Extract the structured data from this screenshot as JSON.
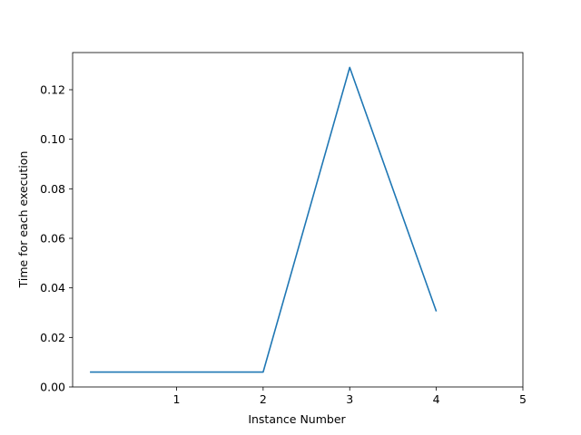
{
  "chart_data": {
    "type": "line",
    "title": "",
    "xlabel": "Instance Number",
    "ylabel": "Time for each execution",
    "xlim": [
      -0.2,
      5.0
    ],
    "ylim": [
      0.0,
      0.135
    ],
    "xticks": [
      1,
      2,
      3,
      4,
      5
    ],
    "yticks": [
      0.0,
      0.02,
      0.04,
      0.06,
      0.08,
      0.1,
      0.12
    ],
    "ytick_labels": [
      "0.00",
      "0.02",
      "0.04",
      "0.06",
      "0.08",
      "0.10",
      "0.12"
    ],
    "grid": false,
    "series": [
      {
        "color": "#1f77b4",
        "x": [
          0,
          1,
          2,
          3,
          4
        ],
        "y": [
          0.006,
          0.006,
          0.006,
          0.129,
          0.0305
        ]
      }
    ]
  }
}
